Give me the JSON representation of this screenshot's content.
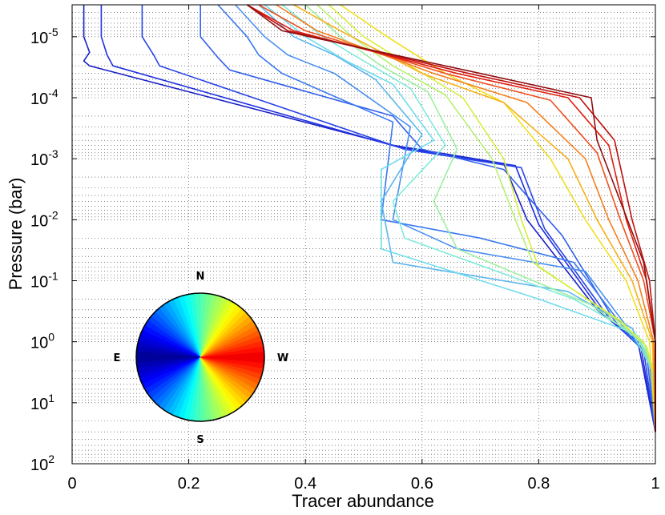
{
  "chart_data": {
    "type": "line",
    "xlabel": "Tracer abundance",
    "ylabel": "Pressure (bar)",
    "xlim": [
      0,
      1
    ],
    "ylim": [
      3e-06,
      100
    ],
    "yscale": "log",
    "y_reversed": true,
    "grid": "dotted",
    "xticks": [
      {
        "value": 0,
        "label": "0"
      },
      {
        "value": 0.2,
        "label": "0.2"
      },
      {
        "value": 0.4,
        "label": "0.4"
      },
      {
        "value": 0.6,
        "label": "0.6"
      },
      {
        "value": 0.8,
        "label": "0.8"
      },
      {
        "value": 1,
        "label": "1"
      }
    ],
    "yticks": [
      {
        "value": 1e-05,
        "base": "10",
        "exp": "-5"
      },
      {
        "value": 0.0001,
        "base": "10",
        "exp": "-4"
      },
      {
        "value": 0.001,
        "base": "10",
        "exp": "-3"
      },
      {
        "value": 0.01,
        "base": "10",
        "exp": "-2"
      },
      {
        "value": 0.1,
        "base": "10",
        "exp": "-1"
      },
      {
        "value": 1,
        "base": "10",
        "exp": "0"
      },
      {
        "value": 10,
        "base": "10",
        "exp": "1"
      },
      {
        "value": 100,
        "base": "10",
        "exp": "2"
      }
    ],
    "colormap": [
      "#00008f",
      "#0000ff",
      "#0080ff",
      "#00ffff",
      "#80ff80",
      "#ffff00",
      "#ff8000",
      "#ff0000",
      "#800000"
    ],
    "series": [
      {
        "color": "#1a22c8",
        "x": [
          0.02,
          0.02,
          0.03,
          0.02,
          0.03,
          0.55,
          0.74,
          0.78,
          0.9,
          0.97,
          1.0
        ],
        "y": [
          3e-06,
          1e-05,
          1.8e-05,
          2.5e-05,
          3e-05,
          0.0006,
          0.0012,
          0.01,
          0.3,
          1.0,
          30
        ]
      },
      {
        "color": "#2030e0",
        "x": [
          0.05,
          0.05,
          0.06,
          0.07,
          0.56,
          0.76,
          0.8,
          0.91,
          0.975,
          1.0
        ],
        "y": [
          3e-06,
          1e-05,
          2e-05,
          3e-05,
          0.00065,
          0.0013,
          0.012,
          0.35,
          1.2,
          30
        ]
      },
      {
        "color": "#2a44e8",
        "x": [
          0.12,
          0.12,
          0.14,
          0.15,
          0.57,
          0.77,
          0.81,
          0.92,
          0.98,
          1.0
        ],
        "y": [
          3e-06,
          1e-05,
          2e-05,
          3e-05,
          0.0007,
          0.0014,
          0.014,
          0.4,
          1.4,
          30
        ]
      },
      {
        "color": "#3260ec",
        "x": [
          0.22,
          0.22,
          0.25,
          0.27,
          0.55,
          0.6,
          0.74,
          0.84,
          0.93,
          0.985,
          1.0
        ],
        "y": [
          3e-06,
          1e-05,
          2.2e-05,
          3.5e-05,
          0.0002,
          0.0007,
          0.0015,
          0.018,
          0.45,
          1.6,
          30
        ]
      },
      {
        "color": "#3a78f0",
        "x": [
          0.25,
          0.3,
          0.32,
          0.36,
          0.55,
          0.53,
          0.7,
          0.86,
          0.94,
          0.99,
          1.0
        ],
        "y": [
          3e-06,
          1e-05,
          2e-05,
          4e-05,
          0.00025,
          0.01,
          0.02,
          0.05,
          0.5,
          2,
          30
        ]
      },
      {
        "color": "#4a90f2",
        "x": [
          0.28,
          0.33,
          0.37,
          0.45,
          0.58,
          0.55,
          0.66,
          0.88,
          0.95,
          0.99,
          1.0
        ],
        "y": [
          3e-06,
          1e-05,
          2e-05,
          4e-05,
          0.0003,
          0.01,
          0.03,
          0.07,
          0.55,
          2.2,
          30
        ]
      },
      {
        "color": "#5cb6ee",
        "x": [
          0.32,
          0.38,
          0.45,
          0.52,
          0.6,
          0.53,
          0.55,
          0.85,
          0.96,
          0.995,
          1.0
        ],
        "y": [
          3e-06,
          1e-05,
          2e-05,
          5e-05,
          0.0004,
          0.005,
          0.05,
          0.15,
          0.6,
          2.5,
          30
        ]
      },
      {
        "color": "#6fdcec",
        "x": [
          0.33,
          0.4,
          0.47,
          0.55,
          0.62,
          0.53,
          0.53,
          0.8,
          0.96,
          0.995,
          1.0
        ],
        "y": [
          3e-06,
          1e-05,
          2.5e-05,
          6e-05,
          0.0005,
          0.0015,
          0.03,
          0.2,
          0.7,
          3,
          30
        ]
      },
      {
        "color": "#80eadc",
        "x": [
          0.36,
          0.43,
          0.5,
          0.58,
          0.64,
          0.55,
          0.57,
          0.86,
          0.97,
          1.0,
          1.0
        ],
        "y": [
          3e-06,
          1e-05,
          2.5e-05,
          7e-05,
          0.0006,
          0.005,
          0.02,
          0.2,
          0.8,
          3,
          30
        ]
      },
      {
        "color": "#9cf0a0",
        "x": [
          0.4,
          0.46,
          0.53,
          0.61,
          0.66,
          0.62,
          0.66,
          0.89,
          0.97,
          1.0,
          1.0
        ],
        "y": [
          3e-06,
          1e-05,
          3e-05,
          8e-05,
          0.0007,
          0.005,
          0.03,
          0.25,
          0.9,
          3.5,
          30
        ]
      },
      {
        "color": "#b8f070",
        "x": [
          0.42,
          0.48,
          0.55,
          0.64,
          0.72,
          0.76,
          0.79,
          0.92,
          0.98,
          1.0,
          1.0
        ],
        "y": [
          3e-06,
          1e-05,
          3e-05,
          9e-05,
          0.001,
          0.01,
          0.05,
          0.35,
          1.0,
          4,
          30
        ]
      },
      {
        "color": "#d8ee40",
        "x": [
          0.44,
          0.5,
          0.58,
          0.67,
          0.74,
          0.77,
          0.8,
          0.94,
          0.985,
          1.0,
          1.0
        ],
        "y": [
          3e-06,
          1e-05,
          3e-05,
          0.0001,
          0.001,
          0.01,
          0.06,
          0.45,
          1.2,
          4,
          30
        ]
      },
      {
        "color": "#f0e020",
        "x": [
          0.46,
          0.54,
          0.64,
          0.74,
          0.82,
          0.88,
          0.95,
          0.99,
          1.0
        ],
        "y": [
          3e-06,
          1e-05,
          4e-05,
          0.00012,
          0.001,
          0.01,
          0.1,
          1,
          30
        ]
      },
      {
        "color": "#f6b018",
        "x": [
          0.38,
          0.46,
          0.6,
          0.74,
          0.85,
          0.9,
          0.96,
          0.995,
          1.0
        ],
        "y": [
          3e-06,
          8e-06,
          4e-05,
          0.00012,
          0.001,
          0.01,
          0.1,
          1,
          30
        ]
      },
      {
        "color": "#f58020",
        "x": [
          0.35,
          0.42,
          0.62,
          0.78,
          0.88,
          0.92,
          0.97,
          0.997,
          1.0
        ],
        "y": [
          3e-06,
          8e-06,
          4e-05,
          0.00012,
          0.001,
          0.01,
          0.1,
          1,
          30
        ]
      },
      {
        "color": "#f05020",
        "x": [
          0.32,
          0.4,
          0.64,
          0.82,
          0.9,
          0.94,
          0.98,
          1.0,
          1.0
        ],
        "y": [
          3e-06,
          8e-06,
          4e-05,
          0.00011,
          0.0008,
          0.01,
          0.1,
          1,
          30
        ]
      },
      {
        "color": "#e02010",
        "x": [
          0.3,
          0.38,
          0.66,
          0.85,
          0.92,
          0.95,
          0.985,
          1.0,
          1.0
        ],
        "y": [
          3e-06,
          8e-06,
          4e-05,
          0.0001,
          0.0006,
          0.01,
          0.1,
          1,
          30
        ]
      },
      {
        "color": "#c01010",
        "x": [
          0.3,
          0.37,
          0.68,
          0.87,
          0.93,
          0.96,
          0.99,
          1.0,
          1.0
        ],
        "y": [
          3e-06,
          8e-06,
          4e-05,
          0.0001,
          0.0005,
          0.01,
          0.1,
          1,
          30
        ]
      },
      {
        "color": "#901010",
        "x": [
          0.3,
          0.36,
          0.7,
          0.89,
          0.9,
          0.94,
          0.98,
          1.0,
          1.0
        ],
        "y": [
          3e-06,
          8e-06,
          4e-05,
          0.0001,
          0.0005,
          0.005,
          0.05,
          1,
          30
        ]
      }
    ]
  },
  "compass": {
    "north": "N",
    "south": "S",
    "east": "E",
    "west": "W"
  }
}
